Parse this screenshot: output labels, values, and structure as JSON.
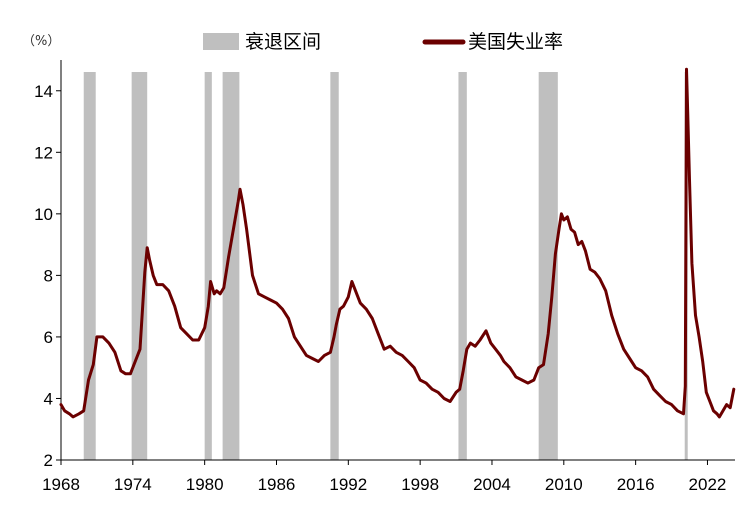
{
  "chart_data": {
    "type": "line",
    "unit_label": "（%）",
    "legend": {
      "recession": "衰退区间",
      "series": "美国失业率"
    },
    "colors": {
      "line": "#6B0000",
      "recession": "#BFBFBF",
      "axis": "#000000"
    },
    "xlim": [
      1968,
      2024.3
    ],
    "ylim": [
      2,
      15
    ],
    "x_ticks": [
      1968,
      1974,
      1980,
      1986,
      1992,
      1998,
      2004,
      2010,
      2016,
      2022
    ],
    "y_ticks": [
      2,
      4,
      6,
      8,
      10,
      12,
      14
    ],
    "recessions": [
      [
        1969.9,
        1970.9
      ],
      [
        1973.9,
        1975.2
      ],
      [
        1980.0,
        1980.6
      ],
      [
        1981.5,
        1982.9
      ],
      [
        1990.5,
        1991.2
      ],
      [
        2001.2,
        2001.9
      ],
      [
        2007.9,
        2009.5
      ],
      [
        2020.1,
        2020.3
      ]
    ],
    "series": [
      {
        "name": "美国失业率",
        "x": [
          1968.0,
          1968.3,
          1968.7,
          1969.0,
          1969.5,
          1969.9,
          1970.3,
          1970.7,
          1971.0,
          1971.5,
          1972.0,
          1972.5,
          1973.0,
          1973.4,
          1973.8,
          1974.2,
          1974.6,
          1975.0,
          1975.2,
          1975.4,
          1975.7,
          1976.0,
          1976.5,
          1977.0,
          1977.5,
          1978.0,
          1978.5,
          1979.0,
          1979.5,
          1980.0,
          1980.3,
          1980.5,
          1980.8,
          1981.0,
          1981.3,
          1981.6,
          1982.0,
          1982.4,
          1982.8,
          1982.95,
          1983.2,
          1983.5,
          1984.0,
          1984.5,
          1985.0,
          1985.5,
          1986.0,
          1986.5,
          1987.0,
          1987.5,
          1988.0,
          1988.5,
          1989.0,
          1989.5,
          1990.0,
          1990.5,
          1990.8,
          1991.0,
          1991.3,
          1991.6,
          1992.0,
          1992.3,
          1992.5,
          1992.8,
          1993.0,
          1993.5,
          1994.0,
          1994.5,
          1995.0,
          1995.5,
          1996.0,
          1996.5,
          1997.0,
          1997.5,
          1998.0,
          1998.5,
          1999.0,
          1999.5,
          2000.0,
          2000.5,
          2001.0,
          2001.3,
          2001.6,
          2001.9,
          2002.2,
          2002.6,
          2003.0,
          2003.5,
          2003.9,
          2004.3,
          2004.7,
          2005.0,
          2005.5,
          2006.0,
          2006.5,
          2007.0,
          2007.5,
          2007.9,
          2008.3,
          2008.7,
          2009.0,
          2009.3,
          2009.6,
          2009.8,
          2010.0,
          2010.3,
          2010.6,
          2010.9,
          2011.2,
          2011.5,
          2011.8,
          2012.2,
          2012.6,
          2013.0,
          2013.5,
          2014.0,
          2014.5,
          2015.0,
          2015.5,
          2016.0,
          2016.5,
          2017.0,
          2017.5,
          2018.0,
          2018.5,
          2019.0,
          2019.5,
          2020.0,
          2020.15,
          2020.25,
          2020.35,
          2020.5,
          2020.7,
          2021.0,
          2021.3,
          2021.6,
          2021.9,
          2022.2,
          2022.5,
          2022.8,
          2023.0,
          2023.3,
          2023.6,
          2023.9,
          2024.2
        ],
        "values": [
          3.8,
          3.6,
          3.5,
          3.4,
          3.5,
          3.6,
          4.6,
          5.1,
          6.0,
          6.0,
          5.8,
          5.5,
          4.9,
          4.8,
          4.8,
          5.2,
          5.6,
          8.1,
          8.9,
          8.5,
          8.0,
          7.7,
          7.7,
          7.5,
          7.0,
          6.3,
          6.1,
          5.9,
          5.9,
          6.3,
          7.0,
          7.8,
          7.4,
          7.5,
          7.4,
          7.6,
          8.6,
          9.5,
          10.4,
          10.8,
          10.3,
          9.5,
          8.0,
          7.4,
          7.3,
          7.2,
          7.1,
          6.9,
          6.6,
          6.0,
          5.7,
          5.4,
          5.3,
          5.2,
          5.4,
          5.5,
          6.0,
          6.4,
          6.9,
          7.0,
          7.3,
          7.8,
          7.6,
          7.3,
          7.1,
          6.9,
          6.6,
          6.1,
          5.6,
          5.7,
          5.5,
          5.4,
          5.2,
          5.0,
          4.6,
          4.5,
          4.3,
          4.2,
          4.0,
          3.9,
          4.2,
          4.3,
          4.9,
          5.6,
          5.8,
          5.7,
          5.9,
          6.2,
          5.8,
          5.6,
          5.4,
          5.2,
          5.0,
          4.7,
          4.6,
          4.5,
          4.6,
          5.0,
          5.1,
          6.1,
          7.3,
          8.7,
          9.5,
          10.0,
          9.8,
          9.9,
          9.5,
          9.4,
          9.0,
          9.1,
          8.8,
          8.2,
          8.1,
          7.9,
          7.5,
          6.7,
          6.1,
          5.6,
          5.3,
          5.0,
          4.9,
          4.7,
          4.3,
          4.1,
          3.9,
          3.8,
          3.6,
          3.5,
          4.4,
          14.7,
          13.3,
          11.1,
          8.4,
          6.7,
          6.0,
          5.2,
          4.2,
          3.9,
          3.6,
          3.5,
          3.4,
          3.6,
          3.8,
          3.7,
          4.3
        ]
      }
    ]
  }
}
